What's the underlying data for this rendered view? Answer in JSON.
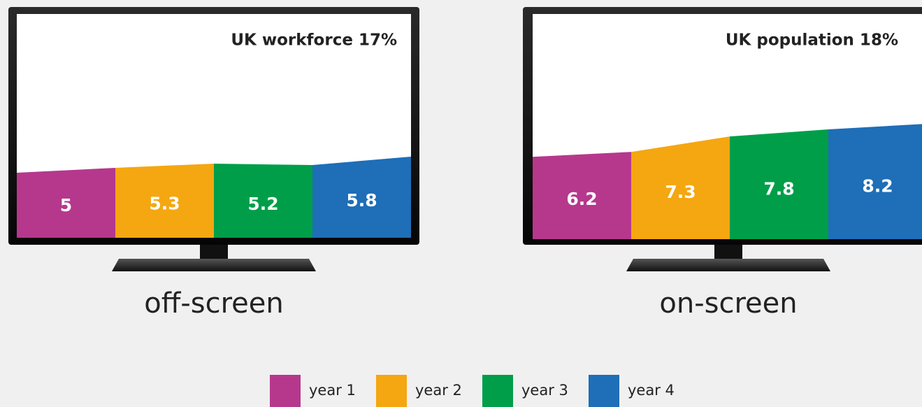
{
  "chart_data": [
    {
      "type": "bar",
      "title": "UK workforce 17%",
      "caption": "off-screen",
      "values": [
        5,
        5.3,
        5.2,
        5.8
      ],
      "ylim": [
        0,
        16
      ]
    },
    {
      "type": "bar",
      "title": "UK population 18%",
      "caption": "on-screen",
      "values": [
        6.2,
        7.3,
        7.8,
        8.2
      ],
      "ylim": [
        0,
        16
      ]
    }
  ],
  "legend": {
    "categories": [
      "year 1",
      "year 2",
      "year 3",
      "year 4"
    ],
    "colors": [
      "#b5388d",
      "#f5a711",
      "#009e49",
      "#1e6eb8"
    ]
  }
}
